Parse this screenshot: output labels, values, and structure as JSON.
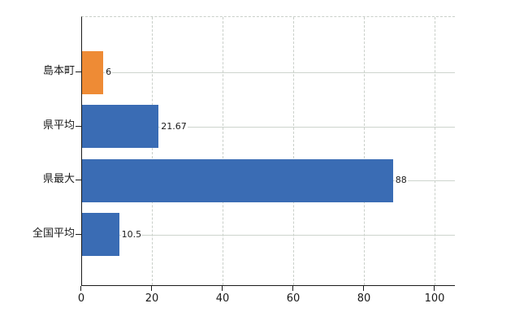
{
  "chart_data": {
    "type": "bar",
    "orientation": "horizontal",
    "title": "",
    "xlabel": "",
    "ylabel": "",
    "categories": [
      "島本町",
      "県平均",
      "県最大",
      "全国平均"
    ],
    "values": [
      6,
      21.67,
      88,
      10.5
    ],
    "value_labels": [
      "6",
      "21.67",
      "88",
      "10.5"
    ],
    "bar_colors": [
      "#ee8b35",
      "#3a6cb4",
      "#3a6cb4",
      "#3a6cb4"
    ],
    "xlim": [
      0,
      100
    ],
    "x_ticks": [
      0,
      20,
      40,
      60,
      80,
      100
    ],
    "grid": true,
    "legend": false,
    "colors": {
      "accent_orange": "#ee8b35",
      "accent_blue": "#3a6cb4",
      "grid_line": "#cdd4cd",
      "axis_line": "#1a1a1a",
      "text": "#1a1a1a",
      "background": "#ffffff"
    }
  }
}
